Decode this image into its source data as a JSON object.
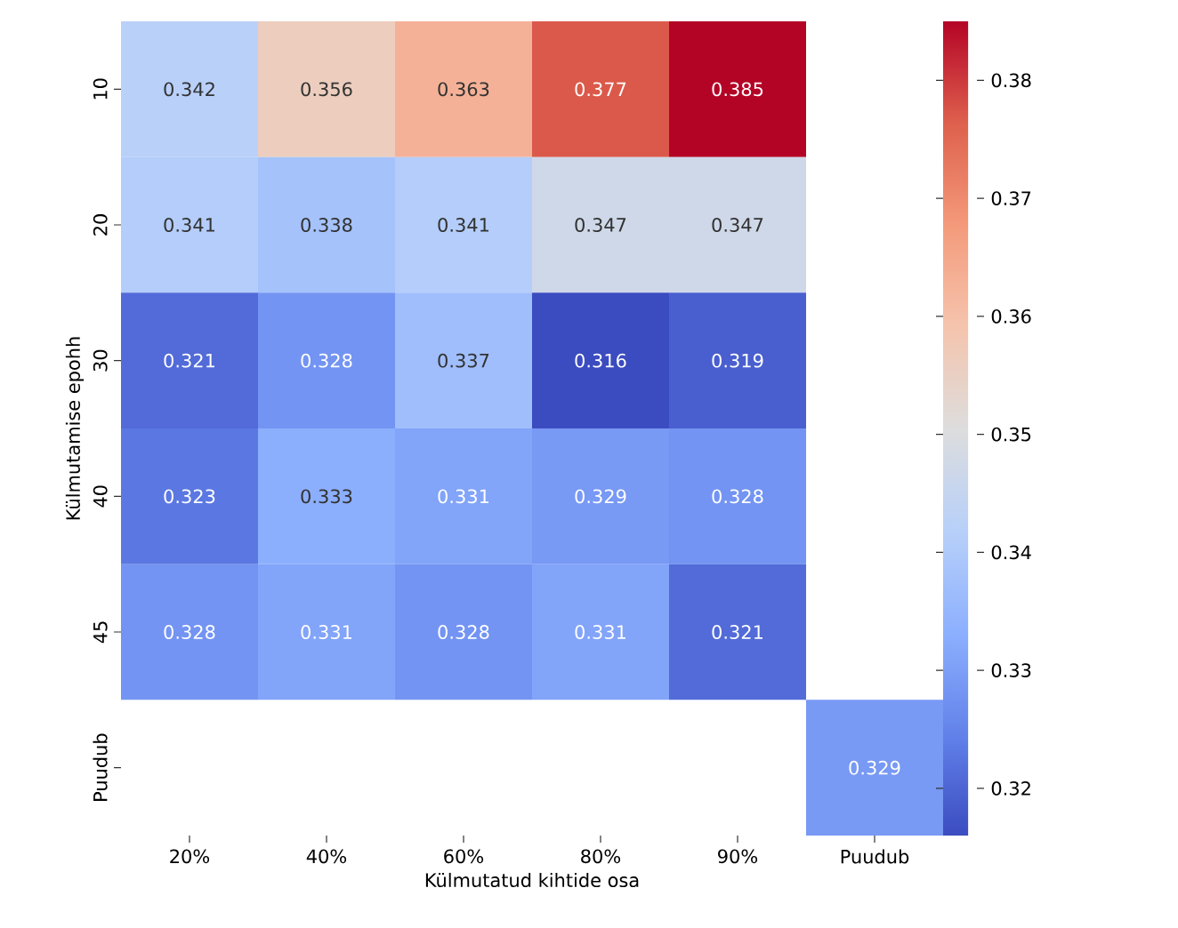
{
  "chart_data": {
    "type": "heatmap",
    "xlabel": "Külmutatud kihtide osa",
    "ylabel": "Külmutamise epohh",
    "categories": [
      "20%",
      "40%",
      "60%",
      "80%",
      "90%",
      "Puudub"
    ],
    "y_categories": [
      "10",
      "20",
      "30",
      "40",
      "45",
      "Puudub"
    ],
    "cells": [
      [
        0.342,
        0.356,
        0.363,
        0.377,
        0.385,
        null
      ],
      [
        0.341,
        0.338,
        0.341,
        0.347,
        0.347,
        null
      ],
      [
        0.321,
        0.328,
        0.337,
        0.316,
        0.319,
        null
      ],
      [
        0.323,
        0.333,
        0.331,
        0.329,
        0.328,
        null
      ],
      [
        0.328,
        0.331,
        0.328,
        0.331,
        0.321,
        null
      ],
      [
        null,
        null,
        null,
        null,
        null,
        0.329
      ]
    ],
    "data_labels": true,
    "clim": [
      0.316,
      0.385
    ],
    "cticks": [
      0.32,
      0.33,
      0.34,
      0.35,
      0.36,
      0.37,
      0.38
    ]
  }
}
